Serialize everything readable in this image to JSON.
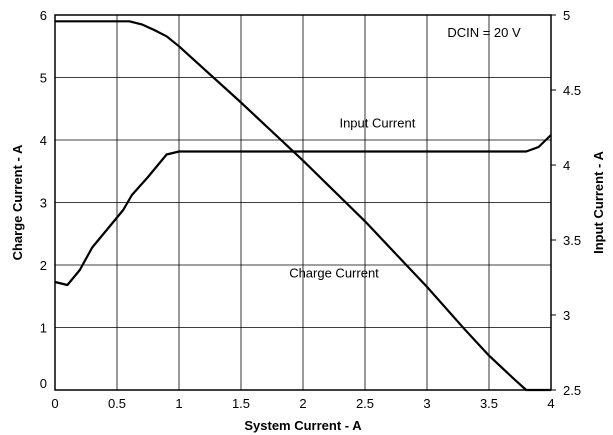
{
  "chart_data": {
    "type": "line",
    "xlabel": "System Current - A",
    "ylabel_left": "Charge Current - A",
    "ylabel_right": "Input Current - A",
    "xlim": [
      0,
      4
    ],
    "ylim_left": [
      0,
      6
    ],
    "ylim_right": [
      2.5,
      5
    ],
    "x_ticks": [
      "0",
      "0.5",
      "1",
      "1.5",
      "2",
      "2.5",
      "3",
      "3.5",
      "4"
    ],
    "y_left_ticks": [
      "0",
      "1",
      "2",
      "3",
      "4",
      "5",
      "6"
    ],
    "y_right_ticks": [
      "2.5",
      "3",
      "3.5",
      "4",
      "4.5",
      "5"
    ],
    "grid": true,
    "annotation": "DCIN = 20 V",
    "series": [
      {
        "name": "Charge Current",
        "axis": "left",
        "points": [
          [
            0,
            5.9
          ],
          [
            0.6,
            5.9
          ],
          [
            0.7,
            5.85
          ],
          [
            0.8,
            5.76
          ],
          [
            0.9,
            5.66
          ],
          [
            1.0,
            5.5
          ],
          [
            1.5,
            4.6
          ],
          [
            2.0,
            3.67
          ],
          [
            2.5,
            2.7
          ],
          [
            3.0,
            1.65
          ],
          [
            3.3,
            0.98
          ],
          [
            3.5,
            0.55
          ],
          [
            3.7,
            0.18
          ],
          [
            3.8,
            0.0
          ],
          [
            4.0,
            0.0
          ]
        ]
      },
      {
        "name": "Input Current",
        "axis": "right",
        "points": [
          [
            0,
            3.22
          ],
          [
            0.1,
            3.2
          ],
          [
            0.2,
            3.3
          ],
          [
            0.3,
            3.45
          ],
          [
            0.45,
            3.6
          ],
          [
            0.55,
            3.7
          ],
          [
            0.62,
            3.8
          ],
          [
            0.75,
            3.92
          ],
          [
            0.9,
            4.07
          ],
          [
            1.0,
            4.09
          ],
          [
            3.8,
            4.09
          ],
          [
            3.9,
            4.12
          ],
          [
            4.0,
            4.2
          ]
        ]
      }
    ],
    "series_labels": [
      {
        "text": "Charge Current",
        "x": 2.25,
        "y_left": 1.8
      },
      {
        "text": "Input Current",
        "x": 2.6,
        "y_left": 4.2
      }
    ]
  }
}
